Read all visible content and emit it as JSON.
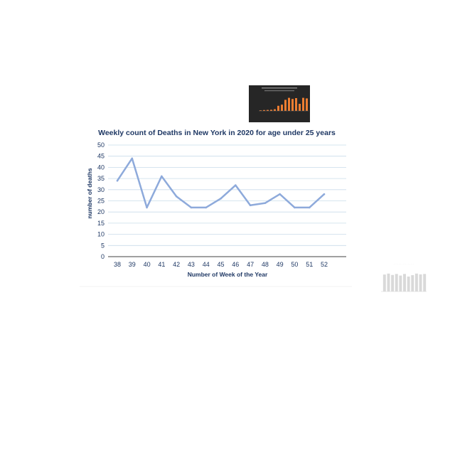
{
  "chart_data": [
    {
      "type": "line",
      "title": "Weekly count of Deaths in New York in 2020 for age under 25 years",
      "xlabel": "Number of Week of the Year",
      "ylabel": "number of deaths",
      "categories": [
        "38",
        "39",
        "40",
        "41",
        "42",
        "43",
        "44",
        "45",
        "46",
        "47",
        "48",
        "49",
        "50",
        "51",
        "52"
      ],
      "series": [
        {
          "values": [
            34,
            44,
            22,
            36,
            27,
            22,
            22,
            26,
            32,
            23,
            24,
            28,
            22,
            22,
            28
          ]
        }
      ],
      "ylim": [
        0,
        50
      ],
      "yticks": [
        "0",
        "5",
        "10",
        "15",
        "20",
        "25",
        "30",
        "35",
        "40",
        "45",
        "50"
      ],
      "grid": true,
      "line_color": "#8eaadb"
    },
    {
      "type": "bar",
      "values": [
        0.2,
        0.3,
        0.35,
        0.4,
        0.6,
        1.8,
        2.2,
        3.9,
        4.6,
        4.2,
        4.5,
        2.5,
        4.6,
        4.4
      ],
      "ylim": [
        0,
        6
      ],
      "bar_color": "#ed7d31",
      "background": "#262626"
    },
    {
      "type": "bar",
      "values": [
        85,
        90,
        83,
        88,
        80,
        88,
        75,
        82,
        90,
        86,
        88
      ],
      "ylim": [
        0,
        100
      ],
      "bar_color": "#d9d9d9"
    }
  ]
}
